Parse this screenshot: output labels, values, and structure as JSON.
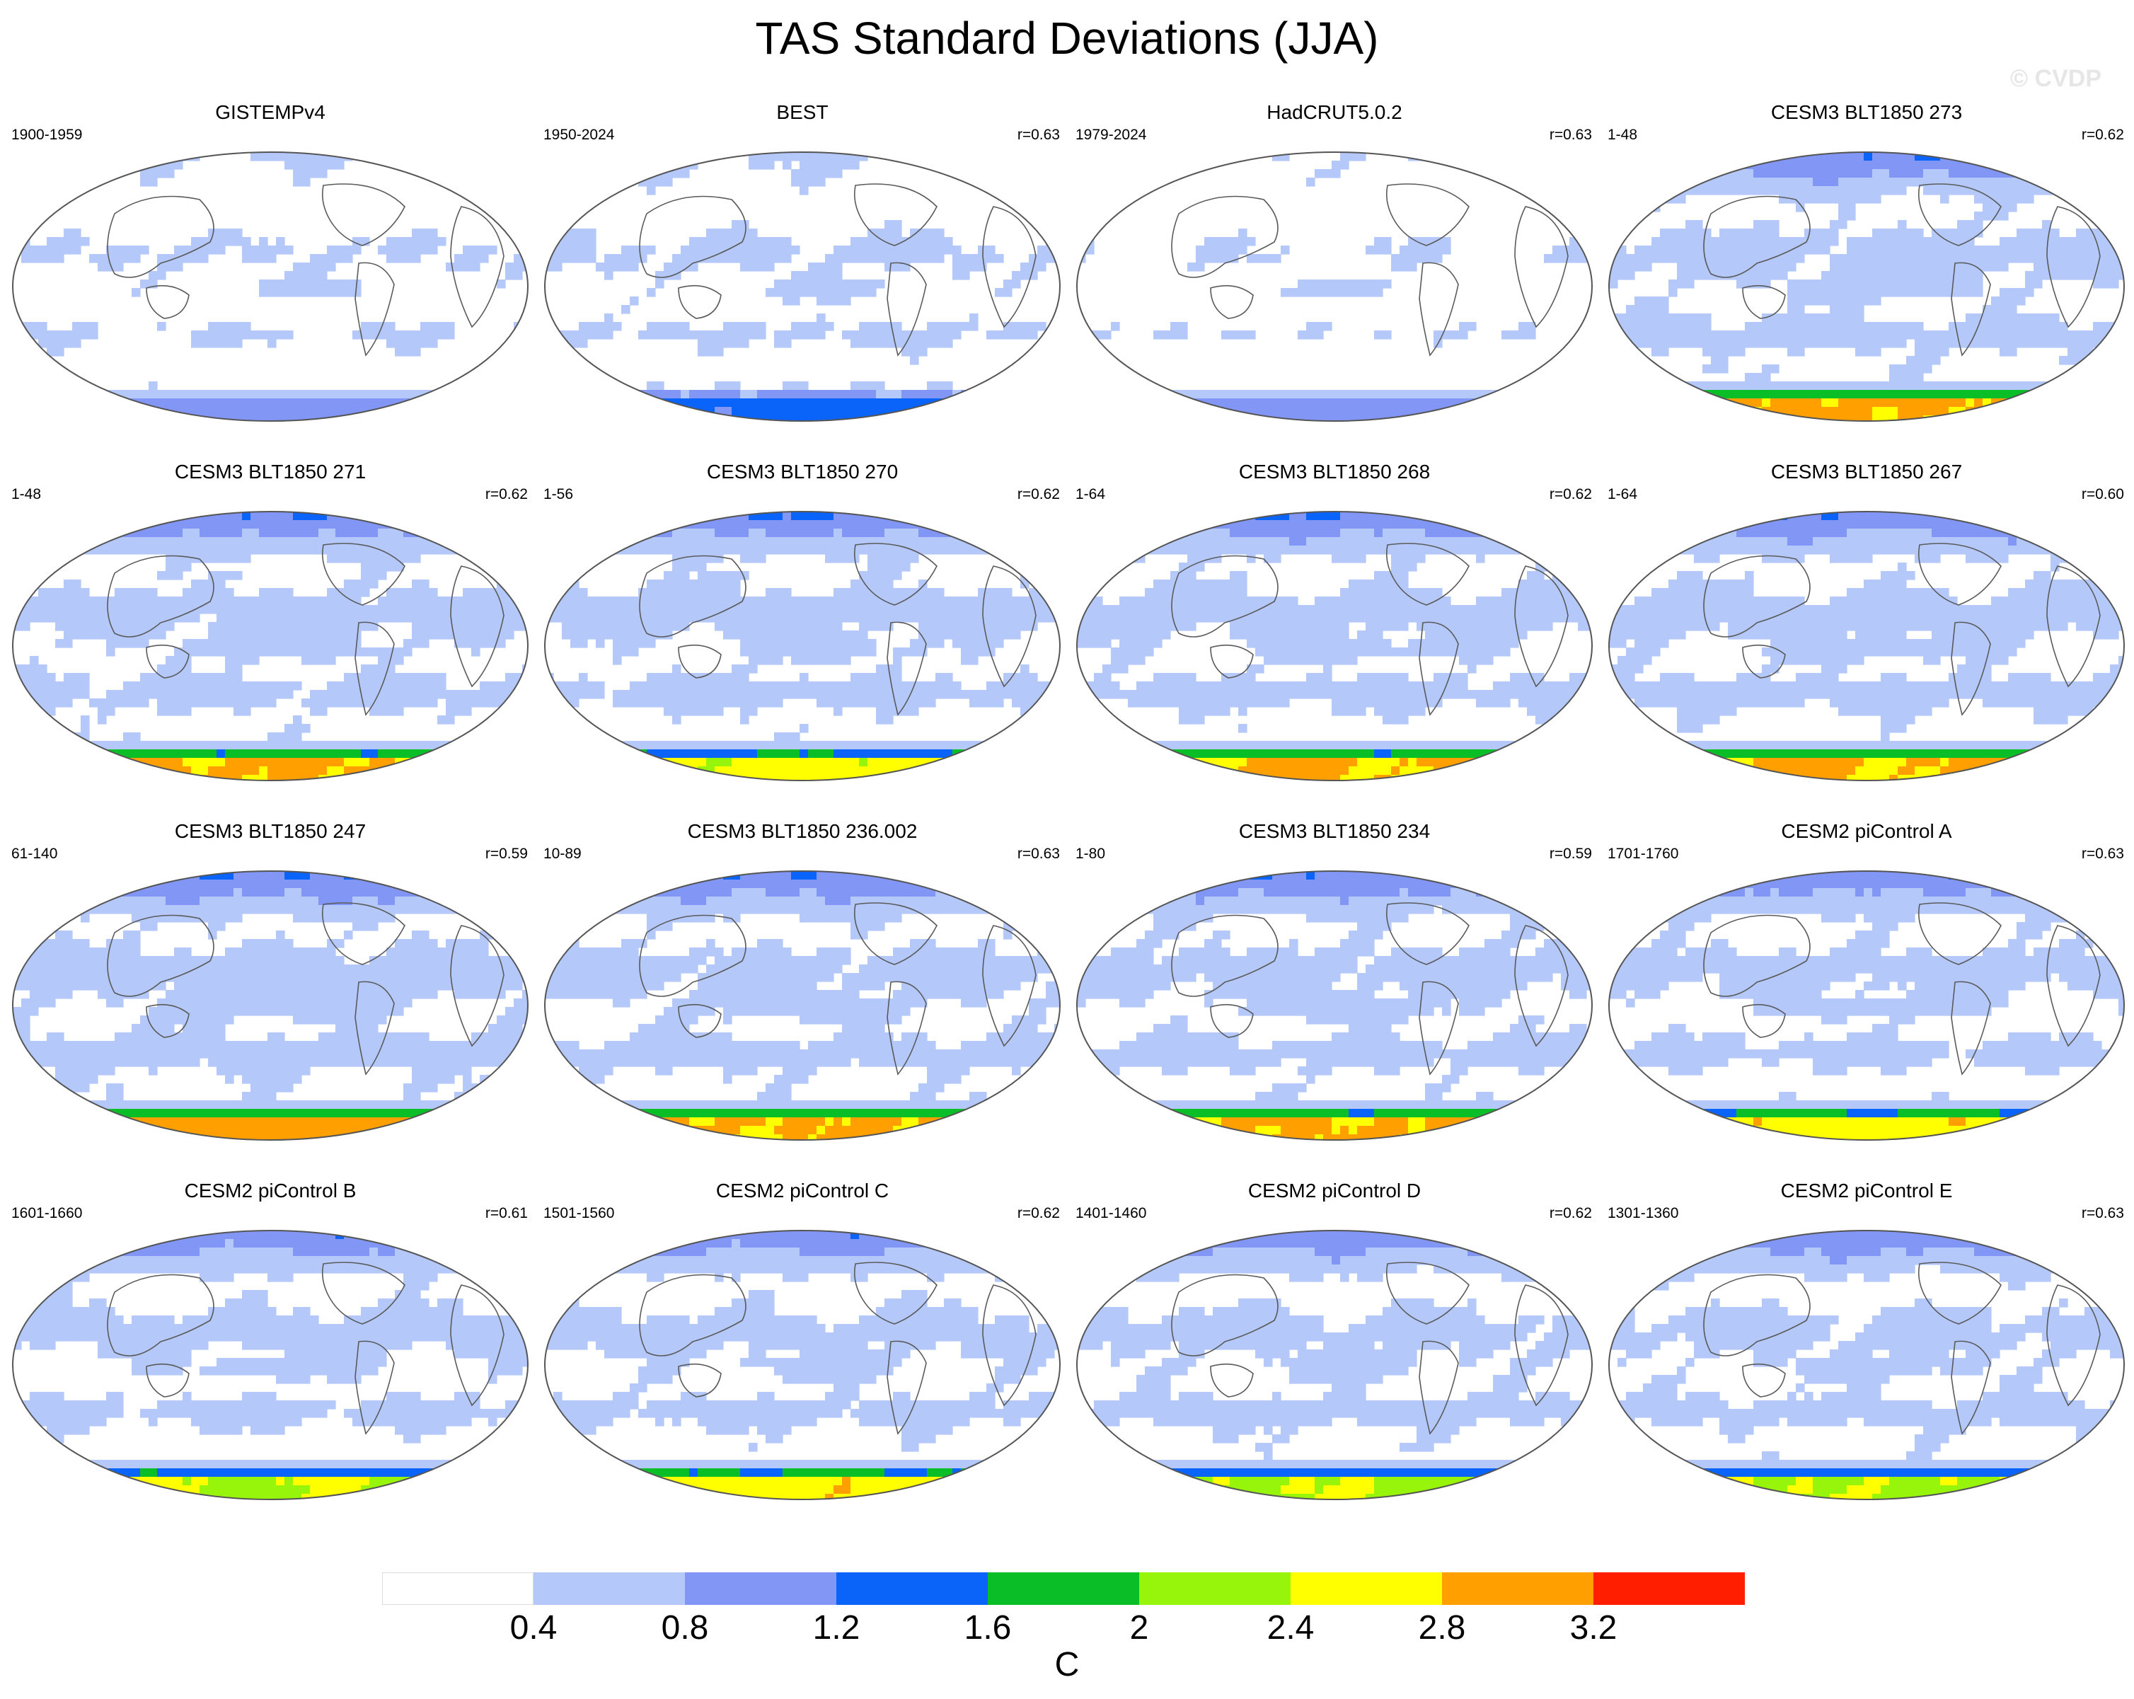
{
  "title": "TAS Standard Deviations (JJA)",
  "watermark": "© CVDP",
  "colors": {
    "levels": [
      "#ffffff",
      "#b4c8fa",
      "#8296f5",
      "#0a64fa",
      "#0abe28",
      "#96f50a",
      "#ffff00",
      "#ffa000",
      "#ff1e00"
    ],
    "outline": "#555555",
    "coast": "#5a5a5a"
  },
  "chart_data": {
    "type": "heatmap",
    "variable": "TAS",
    "season": "JJA",
    "units_label": "C",
    "contour_levels": [
      "0.4",
      "0.8",
      "1.2",
      "1.6",
      "2",
      "2.4",
      "2.8",
      "3.2"
    ],
    "panels": [
      {
        "title": "GISTEMPv4",
        "period": "1900-1959",
        "r": "",
        "amp": 0.7,
        "ant": 3,
        "arc": 1
      },
      {
        "title": "BEST",
        "period": "1950-2024",
        "r": "r=0.63",
        "amp": 0.75,
        "ant": 4,
        "arc": 1
      },
      {
        "title": "HadCRUT5.0.2",
        "period": "1979-2024",
        "r": "r=0.63",
        "amp": 0.65,
        "ant": 3,
        "arc": 1
      },
      {
        "title": "CESM3 BLT1850 273",
        "period": "1-48",
        "r": "r=0.62",
        "amp": 0.9,
        "ant": 8,
        "arc": 4
      },
      {
        "title": "CESM3 BLT1850 271",
        "period": "1-48",
        "r": "r=0.62",
        "amp": 0.9,
        "ant": 8,
        "arc": 4
      },
      {
        "title": "CESM3 BLT1850 270",
        "period": "1-56",
        "r": "r=0.62",
        "amp": 0.9,
        "ant": 7,
        "arc": 4
      },
      {
        "title": "CESM3 BLT1850 268",
        "period": "1-64",
        "r": "r=0.62",
        "amp": 0.9,
        "ant": 8,
        "arc": 4
      },
      {
        "title": "CESM3 BLT1850 267",
        "period": "1-64",
        "r": "r=0.60",
        "amp": 0.9,
        "ant": 8,
        "arc": 4
      },
      {
        "title": "CESM3 BLT1850 247",
        "period": "61-140",
        "r": "r=0.59",
        "amp": 0.95,
        "ant": 8,
        "arc": 4
      },
      {
        "title": "CESM3 BLT1850 236.002",
        "period": "10-89",
        "r": "r=0.63",
        "amp": 0.9,
        "ant": 8,
        "arc": 4
      },
      {
        "title": "CESM3 BLT1850 234",
        "period": "1-80",
        "r": "r=0.59",
        "amp": 0.9,
        "ant": 8,
        "arc": 4
      },
      {
        "title": "CESM2 piControl A",
        "period": "1701-1760",
        "r": "r=0.63",
        "amp": 0.85,
        "ant": 8,
        "arc": 4
      },
      {
        "title": "CESM2 piControl B",
        "period": "1601-1660",
        "r": "r=0.61",
        "amp": 0.85,
        "ant": 7,
        "arc": 4
      },
      {
        "title": "CESM2 piControl C",
        "period": "1501-1560",
        "r": "r=0.62",
        "amp": 0.85,
        "ant": 8,
        "arc": 4
      },
      {
        "title": "CESM2 piControl D",
        "period": "1401-1460",
        "r": "r=0.62",
        "amp": 0.85,
        "ant": 7,
        "arc": 4
      },
      {
        "title": "CESM2 piControl E",
        "period": "1301-1360",
        "r": "r=0.63",
        "amp": 0.85,
        "ant": 7,
        "arc": 4
      }
    ]
  }
}
